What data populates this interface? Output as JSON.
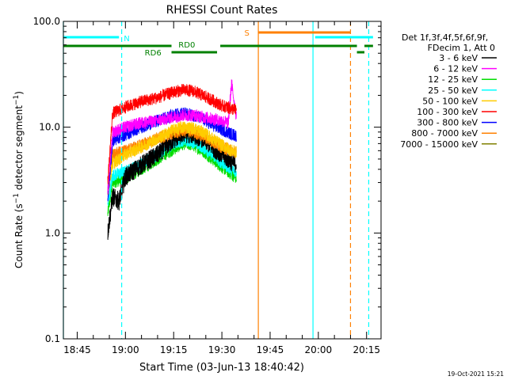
{
  "chart_data": {
    "type": "line",
    "title": "RHESSI Count Rates",
    "xlabel": "Start Time (03-Jun-13 18:40:42)",
    "ylabel": "Count Rate (s⁻¹ detector segment⁻¹)",
    "yscale": "log",
    "ylim": [
      0.1,
      100.0
    ],
    "xlim": [
      "18:40:42",
      "20:19:30"
    ],
    "grid": false,
    "legend_position": "right",
    "y_ticks": [
      "0.1",
      "1.0",
      "10.0",
      "100.0"
    ],
    "x_ticks": [
      "18:45",
      "19:00",
      "19:15",
      "19:30",
      "19:45",
      "20:00",
      "20:15"
    ],
    "legend_header": [
      "Det 1f,3f,4f,5f,6f,9f,",
      "FDecim 1, Att 0"
    ],
    "date_stamp": "19-Oct-2021 15:21",
    "data_start": "18:54:30",
    "data_end": "19:34:30",
    "series": [
      {
        "name": "3 - 6 keV",
        "color": "#000000",
        "x": [
          "18:54:30",
          "18:56:00",
          "18:58:00",
          "19:00:00",
          "19:05:00",
          "19:10:00",
          "19:15:00",
          "19:18:00",
          "19:21:00",
          "19:24:00",
          "19:27:00",
          "19:30:00",
          "19:33:00",
          "19:34:30"
        ],
        "values": [
          1.0,
          2.2,
          2.0,
          3.4,
          4.4,
          5.5,
          7.6,
          8.7,
          8.5,
          7.8,
          6.5,
          5.5,
          4.7,
          4.5
        ]
      },
      {
        "name": "6 - 12 keV",
        "color": "#ff00ff",
        "x": [
          "18:54:30",
          "18:56:00",
          "19:00:00",
          "19:05:00",
          "19:10:00",
          "19:15:00",
          "19:18:00",
          "19:21:00",
          "19:24:00",
          "19:27:00",
          "19:30:00",
          "19:32:00",
          "19:33:00",
          "19:34:30"
        ],
        "values": [
          2.5,
          9.0,
          10.0,
          11.0,
          11.5,
          12.5,
          13.0,
          13.0,
          12.5,
          12.0,
          11.5,
          11.0,
          26.0,
          12.5
        ]
      },
      {
        "name": "12 - 25 keV",
        "color": "#00dd00",
        "x": [
          "18:54:30",
          "18:56:00",
          "19:00:00",
          "19:05:00",
          "19:10:00",
          "19:15:00",
          "19:18:00",
          "19:21:00",
          "19:24:00",
          "19:27:00",
          "19:30:00",
          "19:33:00",
          "19:34:30"
        ],
        "values": [
          1.5,
          3.0,
          3.3,
          4.0,
          5.0,
          6.2,
          7.0,
          6.8,
          6.0,
          5.0,
          4.2,
          3.6,
          3.3
        ]
      },
      {
        "name": "25 - 50 keV",
        "color": "#00ffff",
        "x": [
          "18:54:30",
          "18:56:00",
          "19:00:00",
          "19:05:00",
          "19:10:00",
          "19:15:00",
          "19:18:00",
          "19:21:00",
          "19:24:00",
          "19:27:00",
          "19:30:00",
          "19:33:00",
          "19:34:30"
        ],
        "values": [
          1.8,
          3.5,
          3.8,
          4.5,
          5.5,
          7.0,
          7.5,
          7.3,
          6.5,
          5.5,
          4.6,
          4.0,
          3.8
        ]
      },
      {
        "name": "50 - 100 keV",
        "color": "#ffcc00",
        "x": [
          "18:54:30",
          "18:56:00",
          "19:00:00",
          "19:05:00",
          "19:10:00",
          "19:15:00",
          "19:18:00",
          "19:21:00",
          "19:24:00",
          "19:27:00",
          "19:30:00",
          "19:33:00",
          "19:34:30"
        ],
        "values": [
          2.5,
          4.5,
          5.5,
          6.5,
          7.8,
          9.5,
          10.0,
          9.8,
          9.0,
          7.8,
          6.8,
          6.0,
          5.8
        ]
      },
      {
        "name": "100 - 300 keV",
        "color": "#ff0000",
        "x": [
          "18:54:30",
          "18:56:00",
          "19:00:00",
          "19:05:00",
          "19:10:00",
          "19:15:00",
          "19:18:00",
          "19:21:00",
          "19:24:00",
          "19:27:00",
          "19:30:00",
          "19:33:00",
          "19:34:30"
        ],
        "values": [
          3.0,
          13.5,
          15.5,
          17.5,
          19.0,
          21.5,
          22.5,
          22.0,
          20.0,
          18.0,
          16.0,
          15.0,
          14.5
        ]
      },
      {
        "name": "300 - 800 keV",
        "color": "#0000ff",
        "x": [
          "18:54:30",
          "18:56:00",
          "19:00:00",
          "19:05:00",
          "19:10:00",
          "19:15:00",
          "19:18:00",
          "19:21:00",
          "19:24:00",
          "19:27:00",
          "19:30:00",
          "19:33:00",
          "19:34:30"
        ],
        "values": [
          2.0,
          7.5,
          8.5,
          10.0,
          11.5,
          13.0,
          13.5,
          13.0,
          12.0,
          10.5,
          9.5,
          8.6,
          8.3
        ]
      },
      {
        "name": "800 - 7000 keV",
        "color": "#ff8000",
        "x": [
          "18:54:30",
          "18:56:00",
          "19:00:00",
          "19:05:00",
          "19:10:00",
          "19:15:00",
          "19:18:00",
          "19:21:00",
          "19:24:00",
          "19:27:00",
          "19:30:00",
          "19:33:00",
          "19:34:30"
        ],
        "values": [
          2.2,
          5.5,
          6.0,
          6.8,
          7.8,
          8.8,
          9.3,
          9.0,
          8.3,
          7.3,
          6.5,
          6.0,
          5.8
        ]
      },
      {
        "name": "7000 - 15000 keV",
        "color": "#808000",
        "x": [],
        "values": []
      }
    ],
    "annotations": {
      "attenuator_bars": [
        {
          "label": "N",
          "color": "#00ffff",
          "segments": [
            [
              "18:40:42",
              "18:58:00"
            ],
            [
              "19:59:00",
              "20:17:00"
            ]
          ]
        },
        {
          "label": "S",
          "color": "#ff8000",
          "segments": [
            [
              "19:41:20",
              "20:10:00"
            ]
          ]
        }
      ],
      "decimation_bars": [
        {
          "label": "RD0",
          "color": "#008000",
          "segments": [
            [
              "18:40:42",
              "19:14:20"
            ],
            [
              "19:29:30",
              "20:12:00"
            ],
            [
              "20:14:20",
              "20:17:00"
            ]
          ]
        },
        {
          "label": "RD6",
          "color": "#008000",
          "segments": [
            [
              "19:14:20",
              "19:28:30"
            ],
            [
              "20:12:00",
              "20:14:20"
            ]
          ]
        }
      ],
      "vertical_lines": [
        {
          "color": "#00ffff",
          "style": "solid",
          "time": "18:40:42"
        },
        {
          "color": "#00ffff",
          "style": "dashed",
          "time": "18:58:50"
        },
        {
          "color": "#ff8000",
          "style": "solid",
          "time": "19:41:20"
        },
        {
          "color": "#00ffff",
          "style": "solid",
          "time": "19:58:20"
        },
        {
          "color": "#ff8000",
          "style": "dashed",
          "time": "20:10:00"
        },
        {
          "color": "#00ffff",
          "style": "dashed",
          "time": "20:15:40"
        }
      ]
    }
  }
}
